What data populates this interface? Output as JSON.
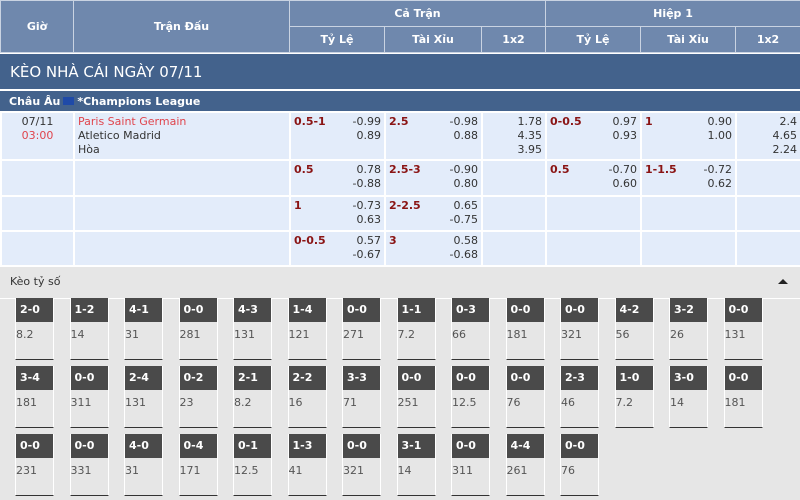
{
  "header": {
    "gio": "Giờ",
    "tran_dau": "Trận Đấu",
    "ca_tran": "Cả Trận",
    "hiep1": "Hiệp 1",
    "ty_le": "Tỷ Lệ",
    "tai_xiu": "Tài Xỉu",
    "x12": "1x2"
  },
  "title": "KÈO NHÀ CÁI NGÀY 07/11",
  "league": {
    "region": "Châu Âu",
    "name": "*Champions League"
  },
  "match": {
    "date": "07/11",
    "time": "03:00",
    "home": "Paris Saint Germain",
    "away": "Atletico Madrid",
    "draw": "Hòa"
  },
  "rows": [
    {
      "hdp": "0.5-1",
      "hdp_odds": [
        "-0.99",
        "0.89"
      ],
      "ou": "2.5",
      "ou_odds": [
        "-0.98",
        "0.88"
      ],
      "x12": [
        "1.78",
        "4.35",
        "3.95"
      ],
      "h1_hdp": "0-0.5",
      "h1_hdp_odds": [
        "0.97",
        "0.93"
      ],
      "h1_ou": "1",
      "h1_ou_odds": [
        "0.90",
        "1.00"
      ],
      "h1_x12": [
        "2.4",
        "4.65",
        "2.24"
      ]
    },
    {
      "hdp": "0.5",
      "hdp_odds": [
        "0.78",
        "-0.88"
      ],
      "ou": "2.5-3",
      "ou_odds": [
        "-0.90",
        "0.80"
      ],
      "x12": [],
      "h1_hdp": "0.5",
      "h1_hdp_odds": [
        "-0.70",
        "0.60"
      ],
      "h1_ou": "1-1.5",
      "h1_ou_odds": [
        "-0.72",
        "0.62"
      ],
      "h1_x12": []
    },
    {
      "hdp": "1",
      "hdp_odds": [
        "-0.73",
        "0.63"
      ],
      "ou": "2-2.5",
      "ou_odds": [
        "0.65",
        "-0.75"
      ],
      "x12": [],
      "h1_hdp": "",
      "h1_hdp_odds": [],
      "h1_ou": "",
      "h1_ou_odds": [],
      "h1_x12": []
    },
    {
      "hdp": "0-0.5",
      "hdp_odds": [
        "0.57",
        "-0.67"
      ],
      "ou": "3",
      "ou_odds": [
        "0.58",
        "-0.68"
      ],
      "x12": [],
      "h1_hdp": "",
      "h1_hdp_odds": [],
      "h1_ou": "",
      "h1_ou_odds": [],
      "h1_x12": []
    }
  ],
  "score_section": {
    "title": "Kèo tỷ số",
    "collapse_icon": "triangle-up-icon"
  },
  "scores": [
    [
      "2-0",
      "8.2"
    ],
    [
      "1-2",
      "14"
    ],
    [
      "4-1",
      "31"
    ],
    [
      "0-0",
      "281"
    ],
    [
      "4-3",
      "131"
    ],
    [
      "1-4",
      "121"
    ],
    [
      "0-0",
      "271"
    ],
    [
      "1-1",
      "7.2"
    ],
    [
      "0-3",
      "66"
    ],
    [
      "0-0",
      "181"
    ],
    [
      "0-0",
      "321"
    ],
    [
      "4-2",
      "56"
    ],
    [
      "3-2",
      "26"
    ],
    [
      "0-0",
      "131"
    ],
    [
      "3-4",
      "181"
    ],
    [
      "0-0",
      "311"
    ],
    [
      "2-4",
      "131"
    ],
    [
      "0-2",
      "23"
    ],
    [
      "2-1",
      "8.2"
    ],
    [
      "2-2",
      "16"
    ],
    [
      "3-3",
      "71"
    ],
    [
      "0-0",
      "251"
    ],
    [
      "0-0",
      "12.5"
    ],
    [
      "0-0",
      "76"
    ],
    [
      "2-3",
      "46"
    ],
    [
      "1-0",
      "7.2"
    ],
    [
      "3-0",
      "14"
    ],
    [
      "0-0",
      "181"
    ],
    [
      "0-0",
      "231"
    ],
    [
      "0-0",
      "331"
    ],
    [
      "4-0",
      "31"
    ],
    [
      "0-4",
      "171"
    ],
    [
      "0-1",
      "12.5"
    ],
    [
      "1-3",
      "41"
    ],
    [
      "0-0",
      "321"
    ],
    [
      "3-1",
      "14"
    ],
    [
      "0-0",
      "311"
    ],
    [
      "4-4",
      "261"
    ],
    [
      "0-0",
      "76"
    ]
  ]
}
